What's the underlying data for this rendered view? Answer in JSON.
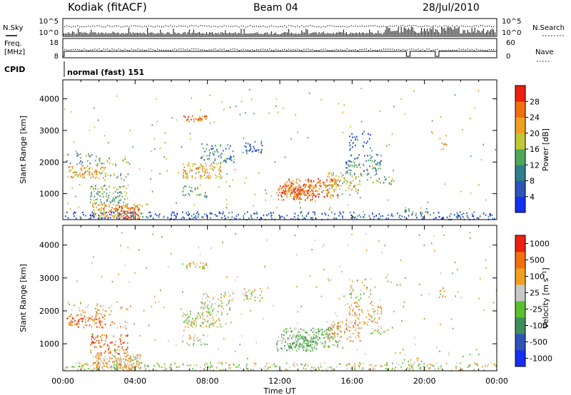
{
  "header": {
    "station": "Kodiak (fitACF)",
    "beam": "Beam 04",
    "date": "28/Jul/2010"
  },
  "strips": {
    "nsky_label": "N.Sky",
    "nsearch_label": "N.Search",
    "noise_ticks": [
      "10^5",
      "10^0"
    ],
    "freq_label": "Freq.",
    "freq_unit": "[MHz]",
    "freq_ticks": [
      "18",
      "8"
    ],
    "nave_label": "Nave",
    "nave_ticks": [
      "60",
      "0"
    ],
    "cpid_label": "CPID",
    "cpid_value": "normal (fast) 151"
  },
  "chart_data": [
    {
      "type": "heatmap",
      "panel": "power",
      "ylabel": "Slant Range [km]",
      "ylim": [
        180,
        4600
      ],
      "yticks": [
        1000,
        2000,
        3000,
        4000
      ],
      "xlim": [
        0,
        24
      ],
      "xticks": [
        "00:00",
        "04:00",
        "08:00",
        "12:00",
        "16:00",
        "20:00",
        "00:00"
      ],
      "colorbar_label": "Power [dB]",
      "colorbar_ticks": [
        "4",
        "8",
        "12",
        "16",
        "20",
        "24",
        "28"
      ],
      "colorbar_colors": [
        "#1530ee",
        "#2d55b8",
        "#2f7f8c",
        "#4fa85a",
        "#c0c83a",
        "#f0a020",
        "#f07010",
        "#ee2010"
      ]
    },
    {
      "type": "heatmap",
      "panel": "velocity",
      "ylabel": "Slant Range [km]",
      "ylim": [
        180,
        4600
      ],
      "yticks": [
        1000,
        2000,
        3000,
        4000
      ],
      "xlim": [
        0,
        24
      ],
      "xticks": [
        "00:00",
        "04:00",
        "08:00",
        "12:00",
        "16:00",
        "20:00",
        "00:00"
      ],
      "xlabel": "Time UT",
      "colorbar_label": "Velocity [m s⁻¹]",
      "colorbar_ticks": [
        "1000",
        "500",
        "100",
        "25",
        "-25",
        "-100",
        "-500",
        "-1000"
      ],
      "colorbar_colors": [
        "#1530ee",
        "#2d55b8",
        "#3f8f5a",
        "#5ac030",
        "#c8c8c8",
        "#f0a020",
        "#f07010",
        "#ee2010"
      ]
    }
  ]
}
